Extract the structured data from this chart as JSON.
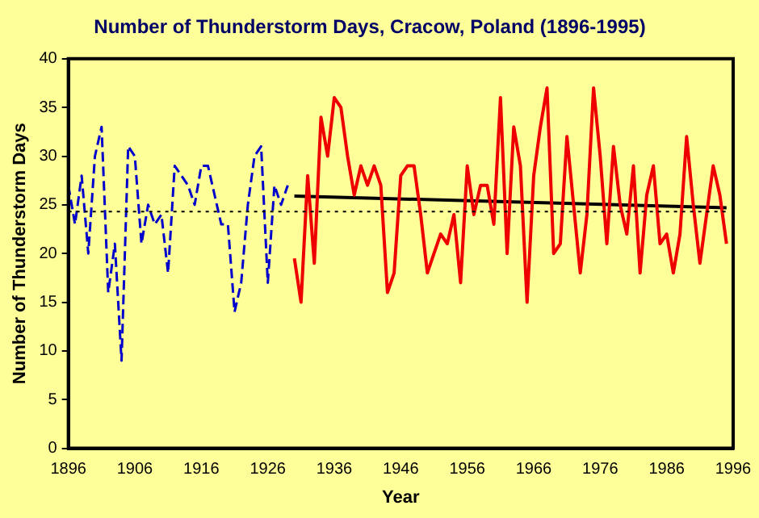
{
  "chart_data": {
    "type": "line",
    "title": "Number of Thunderstorm Days, Cracow, Poland (1896-1995)",
    "xlabel": "Year",
    "ylabel": "Number of Thunderstorm Days",
    "xlim": [
      1896,
      1996
    ],
    "xticks": [
      1896,
      1906,
      1916,
      1926,
      1936,
      1946,
      1956,
      1966,
      1976,
      1986,
      1996
    ],
    "ylim": [
      0,
      40
    ],
    "yticks": [
      0,
      5,
      10,
      15,
      20,
      25,
      30,
      35,
      40
    ],
    "grid": false,
    "legend": false,
    "marker": "none",
    "series": [
      {
        "color": "#0000cc",
        "line_style": "dashed",
        "x": [
          1896,
          1897,
          1898,
          1899,
          1900,
          1901,
          1902,
          1903,
          1904,
          1905,
          1906,
          1907,
          1908,
          1909,
          1910,
          1911,
          1912,
          1913,
          1914,
          1915,
          1916,
          1917,
          1918,
          1919,
          1920,
          1921,
          1922,
          1923,
          1924,
          1925,
          1926,
          1927,
          1928,
          1929
        ],
        "values": [
          27,
          23,
          28,
          20,
          30,
          33,
          16,
          21,
          9,
          31,
          30,
          21,
          25,
          23,
          24,
          18,
          29,
          28,
          27,
          25,
          29,
          29,
          26,
          23,
          23,
          14,
          17,
          25,
          30,
          31,
          17,
          27,
          25,
          27
        ]
      },
      {
        "color": "#ee0000",
        "line_style": "solid",
        "x": [
          1930,
          1931,
          1932,
          1933,
          1934,
          1935,
          1936,
          1937,
          1938,
          1939,
          1940,
          1941,
          1942,
          1943,
          1944,
          1945,
          1946,
          1947,
          1948,
          1949,
          1950,
          1951,
          1952,
          1953,
          1954,
          1955,
          1956,
          1957,
          1958,
          1959,
          1960,
          1961,
          1962,
          1963,
          1964,
          1965,
          1966,
          1967,
          1968,
          1969,
          1970,
          1971,
          1972,
          1973,
          1974,
          1975,
          1976,
          1977,
          1978,
          1979,
          1980,
          1981,
          1982,
          1983,
          1984,
          1985,
          1986,
          1987,
          1988,
          1989,
          1990,
          1991,
          1992,
          1993,
          1994,
          1995
        ],
        "values": [
          19.5,
          15,
          28,
          19,
          34,
          30,
          36,
          35,
          30,
          26,
          29,
          27,
          29,
          27,
          16,
          18,
          28,
          29,
          29,
          24,
          18,
          20,
          22,
          21,
          24,
          17,
          29,
          24,
          27,
          27,
          23,
          36,
          20,
          33,
          29,
          15,
          28,
          33,
          37,
          20,
          21,
          32,
          25,
          18,
          24,
          37,
          30,
          21,
          31,
          25,
          22,
          29,
          18,
          26,
          29,
          21,
          22,
          18,
          22,
          32,
          25,
          19,
          24,
          29,
          26,
          21
        ]
      },
      {
        "color": "#000000",
        "line_style": "solid",
        "x": [
          1930,
          1995
        ],
        "values": [
          25.9,
          24.7
        ]
      }
    ],
    "ref_lines": [
      {
        "axis": "y",
        "value": 24.3,
        "color": "#000000",
        "line_style": "dotted"
      }
    ]
  }
}
